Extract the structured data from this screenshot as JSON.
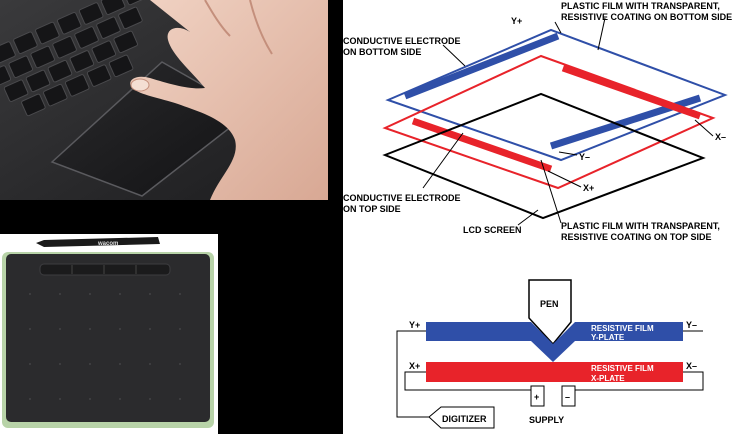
{
  "layer_diagram": {
    "labels": {
      "top_film": [
        "PLASTIC FILM WITH TRANSPARENT,",
        "RESISTIVE COATING ON BOTTOM SIDE"
      ],
      "bottom_electrode": [
        "CONDUCTIVE ELECTRODE",
        "ON BOTTOM SIDE"
      ],
      "top_electrode": [
        "CONDUCTIVE ELECTRODE",
        "ON TOP SIDE"
      ],
      "bottom_film": [
        "PLASTIC FILM WITH TRANSPARENT,",
        "RESISTIVE COATING ON TOP SIDE"
      ],
      "lcd": "LCD SCREEN",
      "y_plus": "Y+",
      "y_minus": "Y–",
      "x_plus": "X+",
      "x_minus": "X–"
    },
    "colors": {
      "blue_layer": "#2f4fa8",
      "red_layer": "#e8232a",
      "outline": "#000000"
    }
  },
  "circuit_diagram": {
    "pen": "PEN",
    "y_film": [
      "RESISTIVE FILM",
      "Y-PLATE"
    ],
    "x_film": [
      "RESISTIVE FILM",
      "X-PLATE"
    ],
    "y_plus": "Y+",
    "y_minus": "Y–",
    "x_plus": "X+",
    "x_minus": "X–",
    "supply": "SUPPLY",
    "plus_sign": "+",
    "minus_sign": "–",
    "digitizer": "DIGITIZER",
    "colors": {
      "y_plate": "#2f4fa8",
      "x_plate": "#e8232a"
    }
  },
  "tablet_photo": {
    "brand": "wacom"
  }
}
